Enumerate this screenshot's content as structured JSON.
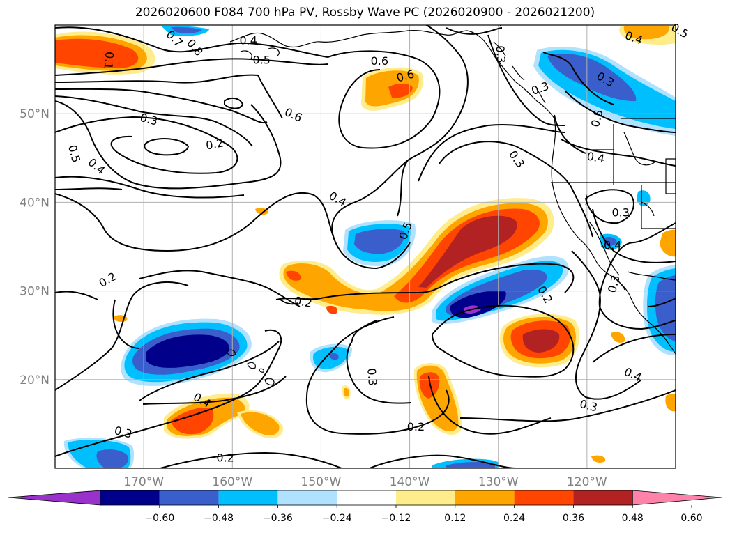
{
  "title": "2026020600 F084 700 hPa PV, Rossby Wave PC (2026020900 - 2026021200)",
  "colors": {
    "c_n072": "#9932cc",
    "c_n060": "#00008b",
    "c_n048": "#3a5fcd",
    "c_n036": "#00bfff",
    "c_n024": "#b0e2ff",
    "c_n012": "#ffffff",
    "c_p012": "#ffec8b",
    "c_p024": "#ffa500",
    "c_p036": "#ff4500",
    "c_p048": "#b22222",
    "c_p060": "#ff82ab",
    "contour": "#000000",
    "grid": "#b0b0b0",
    "coast": "#000000"
  },
  "latitude_labels": [
    {
      "lat": 50,
      "text": "50°N"
    },
    {
      "lat": 40,
      "text": "40°N"
    },
    {
      "lat": 30,
      "text": "30°N"
    },
    {
      "lat": 20,
      "text": "20°N"
    }
  ],
  "longitude_labels": [
    {
      "lon": -170,
      "text": "170°W"
    },
    {
      "lon": -160,
      "text": "160°W"
    },
    {
      "lon": -150,
      "text": "150°W"
    },
    {
      "lon": -140,
      "text": "140°W"
    },
    {
      "lon": -130,
      "text": "130°W"
    },
    {
      "lon": -120,
      "text": "120°W"
    }
  ],
  "colorbar": {
    "ticks": [
      "−0.60",
      "−0.48",
      "−0.36",
      "−0.24",
      "−0.12",
      "0.12",
      "0.24",
      "0.36",
      "0.48",
      "0.60"
    ]
  },
  "contour_labels": [
    {
      "text": "0.7",
      "lon": -166.5,
      "lat": 58.5,
      "rot": 45
    },
    {
      "text": "0.8",
      "lon": -164.2,
      "lat": 57.5,
      "rot": 50
    },
    {
      "text": "0.1",
      "lon": -173.9,
      "lat": 56.0,
      "rot": 95
    },
    {
      "text": "0.4",
      "lon": -158.2,
      "lat": 58.3,
      "rot": 0
    },
    {
      "text": "0.5",
      "lon": -156.7,
      "lat": 56.1,
      "rot": 0
    },
    {
      "text": "0.6",
      "lon": -143.4,
      "lat": 56.0,
      "rot": 0
    },
    {
      "text": "0.6",
      "lon": -140.5,
      "lat": 54.3,
      "rot": -15
    },
    {
      "text": "0.6",
      "lon": -153.1,
      "lat": 49.9,
      "rot": 25
    },
    {
      "text": "0.3",
      "lon": -169.4,
      "lat": 49.4,
      "rot": 15
    },
    {
      "text": "0.2",
      "lon": -162.0,
      "lat": 46.6,
      "rot": -10
    },
    {
      "text": "0.5",
      "lon": -177.8,
      "lat": 45.5,
      "rot": 75
    },
    {
      "text": "0.4",
      "lon": -175.3,
      "lat": 44.1,
      "rot": 40
    },
    {
      "text": "0.4",
      "lon": -148.1,
      "lat": 40.4,
      "rot": 30
    },
    {
      "text": "0.5",
      "lon": -140.5,
      "lat": 36.8,
      "rot": -70
    },
    {
      "text": "0.3",
      "lon": -129.7,
      "lat": 56.7,
      "rot": 85
    },
    {
      "text": "0.3",
      "lon": -127.9,
      "lat": 44.9,
      "rot": 55
    },
    {
      "text": "0.3",
      "lon": -125.3,
      "lat": 52.9,
      "rot": -20
    },
    {
      "text": "0.3",
      "lon": -117.9,
      "lat": 53.9,
      "rot": 30
    },
    {
      "text": "0.5",
      "lon": -118.9,
      "lat": 49.5,
      "rot": -75
    },
    {
      "text": "0.4",
      "lon": -119.0,
      "lat": 45.1,
      "rot": 10
    },
    {
      "text": "0.4",
      "lon": -114.7,
      "lat": 58.6,
      "rot": 20
    },
    {
      "text": "0.5",
      "lon": -109.5,
      "lat": 59.4,
      "rot": 30
    },
    {
      "text": "0.3",
      "lon": -116.2,
      "lat": 38.9,
      "rot": 0
    },
    {
      "text": "0.4",
      "lon": -117.1,
      "lat": 35.2,
      "rot": 0
    },
    {
      "text": "0.3",
      "lon": -117.0,
      "lat": 30.8,
      "rot": -75
    },
    {
      "text": "0.2",
      "lon": -174.1,
      "lat": 31.3,
      "rot": -30
    },
    {
      "text": "0.2",
      "lon": -152.0,
      "lat": 28.8,
      "rot": 10
    },
    {
      "text": "0.2",
      "lon": -124.7,
      "lat": 29.6,
      "rot": 60
    },
    {
      "text": "0.3",
      "lon": -144.2,
      "lat": 20.3,
      "rot": 85
    },
    {
      "text": "0.4",
      "lon": -163.4,
      "lat": 17.7,
      "rot": 30
    },
    {
      "text": "0.3",
      "lon": -172.3,
      "lat": 14.1,
      "rot": 15
    },
    {
      "text": "0.2",
      "lon": -160.8,
      "lat": 11.2,
      "rot": 0
    },
    {
      "text": "0.2",
      "lon": -139.3,
      "lat": 14.7,
      "rot": 0
    },
    {
      "text": "0.3",
      "lon": -119.8,
      "lat": 17.1,
      "rot": 15
    },
    {
      "text": "0.4",
      "lon": -114.8,
      "lat": 20.6,
      "rot": 25
    }
  ]
}
